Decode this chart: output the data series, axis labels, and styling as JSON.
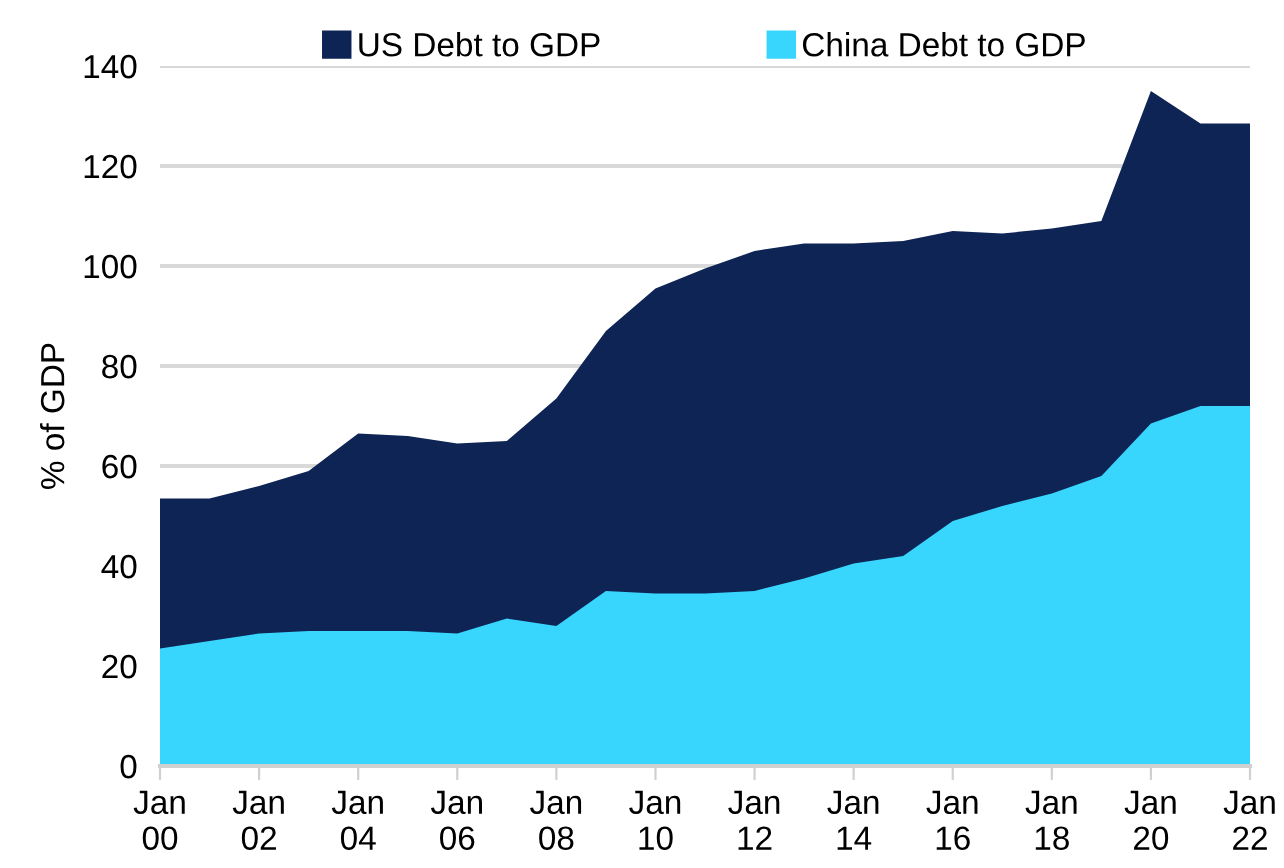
{
  "chart_data": {
    "type": "area",
    "ylabel": "% of GDP",
    "categories": [
      "Jan\n00",
      null,
      "Jan\n02",
      null,
      "Jan\n04",
      null,
      "Jan\n06",
      null,
      "Jan\n08",
      null,
      "Jan\n10",
      null,
      "Jan\n12",
      null,
      "Jan\n14",
      null,
      "Jan\n16",
      null,
      "Jan\n18",
      null,
      "Jan\n20",
      null,
      "Jan\n22"
    ],
    "series": [
      {
        "name": "US Debt to GDP",
        "color": "#0d2454",
        "values": [
          53.5,
          53.5,
          56,
          59,
          66.5,
          66,
          64.5,
          65,
          73.5,
          87,
          95.5,
          99.5,
          103,
          104.5,
          104.5,
          105,
          107,
          106.5,
          107.5,
          109,
          135,
          128.5,
          128.5
        ]
      },
      {
        "name": "China Debt to GDP",
        "color": "#38d5fc",
        "values": [
          23.5,
          25,
          26.5,
          27,
          27,
          27,
          26.5,
          29.5,
          28,
          35,
          34.5,
          34.5,
          35,
          37.5,
          40.5,
          42,
          49,
          52,
          54.5,
          58,
          68.5,
          72,
          72
        ]
      }
    ],
    "ylim": [
      0,
      140
    ],
    "yticks": [
      0,
      20,
      40,
      60,
      80,
      100,
      120,
      140
    ],
    "grid": "y",
    "legend": "top"
  }
}
